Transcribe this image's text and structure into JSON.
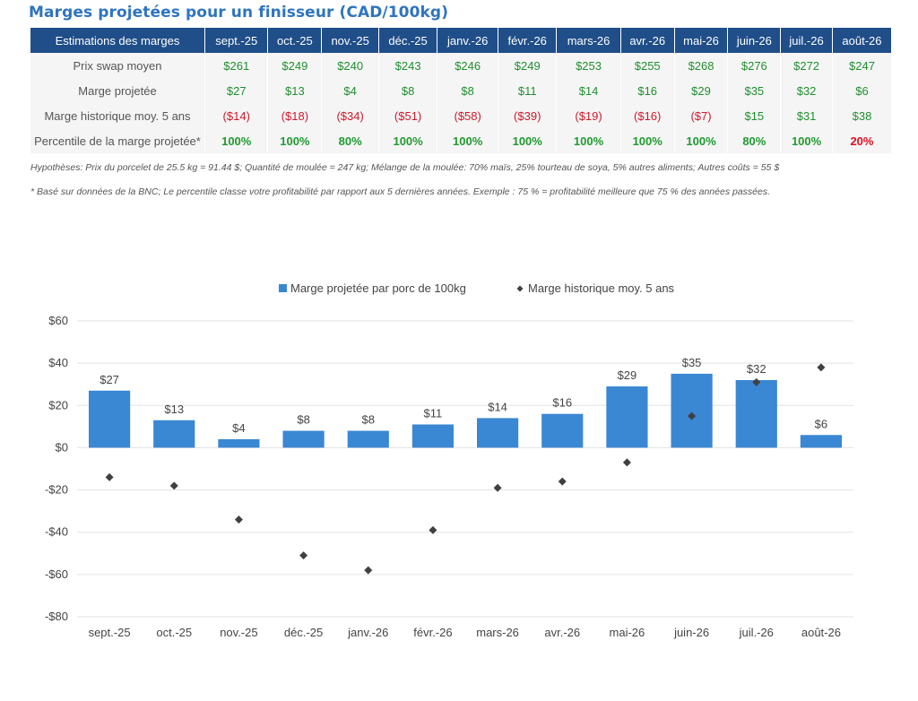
{
  "title": "Marges projetées pour un finisseur (CAD/100kg)",
  "table": {
    "header_label": "Estimations des marges",
    "months": [
      "sept.-25",
      "oct.-25",
      "nov.-25",
      "déc.-25",
      "janv.-26",
      "févr.-26",
      "mars-26",
      "avr.-26",
      "mai-26",
      "juin-26",
      "juil.-26",
      "août-26"
    ],
    "rows": [
      {
        "label": "Prix swap moyen",
        "cells": [
          {
            "text": "$261",
            "tone": "pos"
          },
          {
            "text": "$249",
            "tone": "pos"
          },
          {
            "text": "$240",
            "tone": "pos"
          },
          {
            "text": "$243",
            "tone": "pos"
          },
          {
            "text": "$246",
            "tone": "pos"
          },
          {
            "text": "$249",
            "tone": "pos"
          },
          {
            "text": "$253",
            "tone": "pos"
          },
          {
            "text": "$255",
            "tone": "pos"
          },
          {
            "text": "$268",
            "tone": "pos"
          },
          {
            "text": "$276",
            "tone": "pos"
          },
          {
            "text": "$272",
            "tone": "pos"
          },
          {
            "text": "$247",
            "tone": "pos"
          }
        ]
      },
      {
        "label": "Marge projetée",
        "cells": [
          {
            "text": "$27",
            "tone": "pos"
          },
          {
            "text": "$13",
            "tone": "pos"
          },
          {
            "text": "$4",
            "tone": "pos"
          },
          {
            "text": "$8",
            "tone": "pos"
          },
          {
            "text": "$8",
            "tone": "pos"
          },
          {
            "text": "$11",
            "tone": "pos"
          },
          {
            "text": "$14",
            "tone": "pos"
          },
          {
            "text": "$16",
            "tone": "pos"
          },
          {
            "text": "$29",
            "tone": "pos"
          },
          {
            "text": "$35",
            "tone": "pos"
          },
          {
            "text": "$32",
            "tone": "pos"
          },
          {
            "text": "$6",
            "tone": "pos"
          }
        ]
      },
      {
        "label": "Marge historique moy. 5 ans",
        "cells": [
          {
            "text": "($14)",
            "tone": "neg"
          },
          {
            "text": "($18)",
            "tone": "neg"
          },
          {
            "text": "($34)",
            "tone": "neg"
          },
          {
            "text": "($51)",
            "tone": "neg"
          },
          {
            "text": "($58)",
            "tone": "neg"
          },
          {
            "text": "($39)",
            "tone": "neg"
          },
          {
            "text": "($19)",
            "tone": "neg"
          },
          {
            "text": "($16)",
            "tone": "neg"
          },
          {
            "text": "($7)",
            "tone": "neg"
          },
          {
            "text": "$15",
            "tone": "pos"
          },
          {
            "text": "$31",
            "tone": "pos"
          },
          {
            "text": "$38",
            "tone": "pos"
          }
        ]
      },
      {
        "label": "Percentile de la marge projetée*",
        "cells": [
          {
            "text": "100%",
            "tone": "pct-green"
          },
          {
            "text": "100%",
            "tone": "pct-green"
          },
          {
            "text": "80%",
            "tone": "pct-green"
          },
          {
            "text": "100%",
            "tone": "pct-green"
          },
          {
            "text": "100%",
            "tone": "pct-green"
          },
          {
            "text": "100%",
            "tone": "pct-green"
          },
          {
            "text": "100%",
            "tone": "pct-green"
          },
          {
            "text": "100%",
            "tone": "pct-green"
          },
          {
            "text": "100%",
            "tone": "pct-green"
          },
          {
            "text": "80%",
            "tone": "pct-green"
          },
          {
            "text": "100%",
            "tone": "pct-green"
          },
          {
            "text": "20%",
            "tone": "pct-red"
          }
        ]
      }
    ]
  },
  "notes": {
    "hypotheses": "Hypothèses: Prix du porcelet de 25.5 kg = 91.44 $; Quantité de moulée = 247 kg; Mélange de la moulée: 70% maïs, 25% tourteau de soya, 5% autres aliments; Autres coûts = 55 $",
    "footnote": "* Basé sur données de la BNC; Le percentile classe votre profitabilité par rapport aux 5 dernières années. Exemple : 75 % = profitabilité meilleure que 75 % des années passées."
  },
  "chart_data": {
    "type": "bar",
    "categories": [
      "sept.-25",
      "oct.-25",
      "nov.-25",
      "déc.-25",
      "janv.-26",
      "févr.-26",
      "mars-26",
      "avr.-26",
      "mai-26",
      "juin-26",
      "juil.-26",
      "août-26"
    ],
    "series": [
      {
        "name": "Marge projetée par porc de 100kg",
        "type": "bar",
        "color": "#3a87d3",
        "values": [
          27,
          13,
          4,
          8,
          8,
          11,
          14,
          16,
          29,
          35,
          32,
          6
        ],
        "labels": [
          "$27",
          "$13",
          "$4",
          "$8",
          "$8",
          "$11",
          "$14",
          "$16",
          "$29",
          "$35",
          "$32",
          "$6"
        ]
      },
      {
        "name": "Marge historique moy. 5 ans",
        "type": "scatter",
        "color": "#404040",
        "values": [
          -14,
          -18,
          -34,
          -51,
          -58,
          -39,
          -19,
          -16,
          -7,
          15,
          31,
          38
        ]
      }
    ],
    "ylim": [
      -80,
      60
    ],
    "yticks": [
      60,
      40,
      20,
      0,
      -20,
      -40,
      -60,
      -80
    ],
    "ytick_labels": [
      "$60",
      "$40",
      "$20",
      "$0",
      "-$20",
      "-$40",
      "-$60",
      "-$80"
    ],
    "grid": true,
    "legend_position": "top-center"
  }
}
